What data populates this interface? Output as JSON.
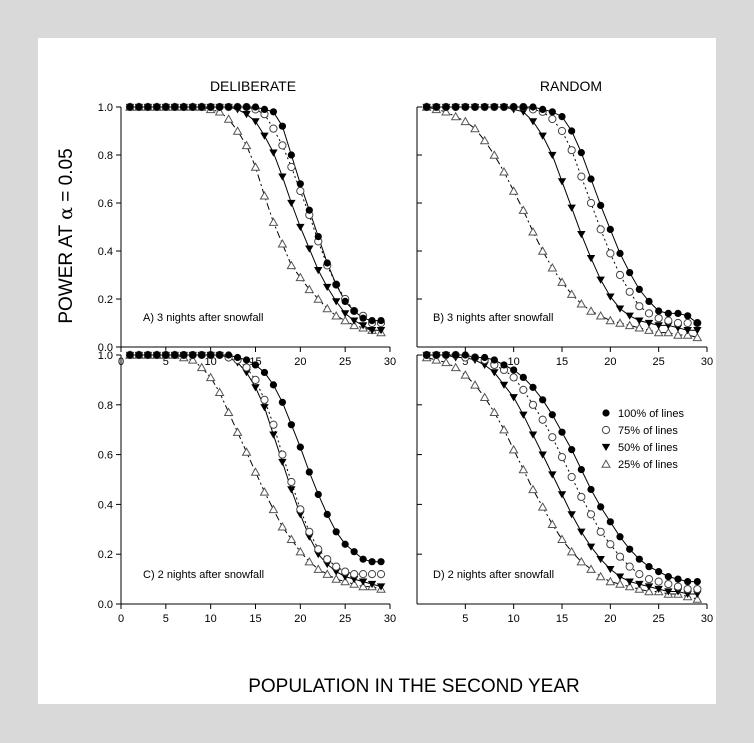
{
  "figure": {
    "col_titles": [
      "DELIBERATE",
      "RANDOM"
    ],
    "ylabel_prefix": "POWER AT ",
    "ylabel_alpha": "α",
    "ylabel_suffix": " = 0.05",
    "xlabel": "POPULATION IN THE SECOND YEAR",
    "legend": [
      {
        "label": "100% of lines",
        "marker": "filled-circle"
      },
      {
        "label": "75% of lines",
        "marker": "open-circle"
      },
      {
        "label": "50% of lines",
        "marker": "filled-triangle-down"
      },
      {
        "label": "25% of lines",
        "marker": "open-triangle-up"
      }
    ],
    "colors": {
      "background": "#d9d9d9",
      "panel": "#ffffff",
      "ink": "#000000",
      "open_marker_stroke": "#444444"
    }
  },
  "chart_data": [
    {
      "type": "line",
      "panel": "A) 3 nights after snowfall",
      "column": "DELIBERATE",
      "xlim": [
        0,
        30
      ],
      "ylim": [
        0,
        1
      ],
      "xticks": [
        0,
        5,
        10,
        15,
        20,
        25,
        30
      ],
      "yticks": [
        0.0,
        0.2,
        0.4,
        0.6,
        0.8,
        1.0
      ],
      "x": [
        1,
        2,
        3,
        4,
        5,
        6,
        7,
        8,
        9,
        10,
        11,
        12,
        13,
        14,
        15,
        16,
        17,
        18,
        19,
        20,
        21,
        22,
        23,
        24,
        25,
        26,
        27,
        28,
        29
      ],
      "series": [
        {
          "name": "100% of lines",
          "values": [
            1.0,
            1.0,
            1.0,
            1.0,
            1.0,
            1.0,
            1.0,
            1.0,
            1.0,
            1.0,
            1.0,
            1.0,
            1.0,
            1.0,
            1.0,
            0.99,
            0.98,
            0.92,
            0.8,
            0.68,
            0.57,
            0.46,
            0.35,
            0.26,
            0.19,
            0.15,
            0.12,
            0.11,
            0.11
          ]
        },
        {
          "name": "75% of lines",
          "values": [
            1.0,
            1.0,
            1.0,
            1.0,
            1.0,
            1.0,
            1.0,
            1.0,
            1.0,
            1.0,
            1.0,
            1.0,
            1.0,
            1.0,
            0.99,
            0.97,
            0.91,
            0.84,
            0.75,
            0.65,
            0.55,
            0.44,
            0.34,
            0.26,
            0.2,
            0.15,
            0.13,
            0.1,
            0.1
          ]
        },
        {
          "name": "50% of lines",
          "values": [
            1.0,
            1.0,
            1.0,
            1.0,
            1.0,
            1.0,
            1.0,
            1.0,
            1.0,
            1.0,
            1.0,
            1.0,
            0.99,
            0.97,
            0.94,
            0.88,
            0.81,
            0.71,
            0.6,
            0.5,
            0.41,
            0.32,
            0.25,
            0.19,
            0.14,
            0.11,
            0.09,
            0.07,
            0.07
          ]
        },
        {
          "name": "25% of lines",
          "values": [
            1.0,
            1.0,
            1.0,
            1.0,
            1.0,
            1.0,
            1.0,
            1.0,
            1.0,
            0.99,
            0.98,
            0.95,
            0.9,
            0.84,
            0.75,
            0.63,
            0.52,
            0.43,
            0.34,
            0.29,
            0.24,
            0.2,
            0.16,
            0.13,
            0.11,
            0.09,
            0.08,
            0.07,
            0.06
          ]
        }
      ]
    },
    {
      "type": "line",
      "panel": "B) 3 nights after snowfall",
      "column": "RANDOM",
      "xlim": [
        0,
        30
      ],
      "ylim": [
        0,
        1
      ],
      "xticks": [
        5,
        10,
        15,
        20,
        25,
        30
      ],
      "yticks": [
        0.0,
        0.2,
        0.4,
        0.6,
        0.8,
        1.0
      ],
      "x": [
        1,
        2,
        3,
        4,
        5,
        6,
        7,
        8,
        9,
        10,
        11,
        12,
        13,
        14,
        15,
        16,
        17,
        18,
        19,
        20,
        21,
        22,
        23,
        24,
        25,
        26,
        27,
        28,
        29
      ],
      "series": [
        {
          "name": "100% of lines",
          "values": [
            1.0,
            1.0,
            1.0,
            1.0,
            1.0,
            1.0,
            1.0,
            1.0,
            1.0,
            1.0,
            1.0,
            1.0,
            0.99,
            0.98,
            0.96,
            0.9,
            0.81,
            0.7,
            0.59,
            0.49,
            0.39,
            0.31,
            0.24,
            0.19,
            0.15,
            0.14,
            0.14,
            0.13,
            0.1
          ]
        },
        {
          "name": "75% of lines",
          "values": [
            1.0,
            1.0,
            1.0,
            1.0,
            1.0,
            1.0,
            1.0,
            1.0,
            1.0,
            1.0,
            1.0,
            0.99,
            0.98,
            0.95,
            0.9,
            0.82,
            0.71,
            0.6,
            0.49,
            0.39,
            0.3,
            0.23,
            0.17,
            0.14,
            0.12,
            0.11,
            0.1,
            0.1,
            0.1
          ]
        },
        {
          "name": "50% of lines",
          "values": [
            1.0,
            1.0,
            1.0,
            1.0,
            1.0,
            1.0,
            1.0,
            1.0,
            1.0,
            0.99,
            0.98,
            0.94,
            0.88,
            0.8,
            0.69,
            0.58,
            0.47,
            0.37,
            0.28,
            0.21,
            0.16,
            0.13,
            0.11,
            0.1,
            0.09,
            0.09,
            0.08,
            0.07,
            0.07
          ]
        },
        {
          "name": "25% of lines",
          "values": [
            1.0,
            0.99,
            0.98,
            0.96,
            0.94,
            0.91,
            0.86,
            0.8,
            0.73,
            0.65,
            0.57,
            0.48,
            0.4,
            0.33,
            0.27,
            0.22,
            0.18,
            0.15,
            0.13,
            0.11,
            0.1,
            0.09,
            0.08,
            0.07,
            0.06,
            0.06,
            0.05,
            0.05,
            0.04
          ]
        }
      ]
    },
    {
      "type": "line",
      "panel": "C) 2 nights after snowfall",
      "column": "DELIBERATE",
      "xlim": [
        0,
        30
      ],
      "ylim": [
        0,
        1
      ],
      "xticks": [
        0,
        5,
        10,
        15,
        20,
        25,
        30
      ],
      "yticks": [
        0.0,
        0.2,
        0.4,
        0.6,
        0.8,
        1.0
      ],
      "x": [
        1,
        2,
        3,
        4,
        5,
        6,
        7,
        8,
        9,
        10,
        11,
        12,
        13,
        14,
        15,
        16,
        17,
        18,
        19,
        20,
        21,
        22,
        23,
        24,
        25,
        26,
        27,
        28,
        29
      ],
      "series": [
        {
          "name": "100% of lines",
          "values": [
            1.0,
            1.0,
            1.0,
            1.0,
            1.0,
            1.0,
            1.0,
            1.0,
            1.0,
            1.0,
            1.0,
            1.0,
            0.99,
            0.98,
            0.96,
            0.93,
            0.88,
            0.81,
            0.72,
            0.63,
            0.53,
            0.44,
            0.36,
            0.29,
            0.24,
            0.21,
            0.18,
            0.17,
            0.17
          ]
        },
        {
          "name": "75% of lines",
          "values": [
            1.0,
            1.0,
            1.0,
            1.0,
            1.0,
            1.0,
            1.0,
            1.0,
            1.0,
            1.0,
            1.0,
            0.99,
            0.98,
            0.95,
            0.9,
            0.82,
            0.72,
            0.6,
            0.49,
            0.38,
            0.29,
            0.22,
            0.18,
            0.15,
            0.13,
            0.12,
            0.12,
            0.12,
            0.12
          ]
        },
        {
          "name": "50% of lines",
          "values": [
            1.0,
            1.0,
            1.0,
            1.0,
            1.0,
            1.0,
            1.0,
            1.0,
            1.0,
            1.0,
            1.0,
            0.99,
            0.97,
            0.93,
            0.87,
            0.79,
            0.68,
            0.57,
            0.46,
            0.36,
            0.27,
            0.2,
            0.16,
            0.13,
            0.11,
            0.1,
            0.09,
            0.08,
            0.07
          ]
        },
        {
          "name": "25% of lines",
          "values": [
            1.0,
            1.0,
            1.0,
            1.0,
            1.0,
            1.0,
            0.99,
            0.98,
            0.95,
            0.91,
            0.85,
            0.77,
            0.69,
            0.61,
            0.53,
            0.45,
            0.38,
            0.31,
            0.26,
            0.21,
            0.17,
            0.14,
            0.12,
            0.1,
            0.09,
            0.08,
            0.07,
            0.07,
            0.06
          ]
        }
      ]
    },
    {
      "type": "line",
      "panel": "D) 2 nights after snowfall",
      "column": "RANDOM",
      "xlim": [
        0,
        30
      ],
      "ylim": [
        0,
        1
      ],
      "xticks": [
        5,
        10,
        15,
        20,
        25,
        30
      ],
      "yticks": [
        0.0,
        0.2,
        0.4,
        0.6,
        0.8,
        1.0
      ],
      "x": [
        1,
        2,
        3,
        4,
        5,
        6,
        7,
        8,
        9,
        10,
        11,
        12,
        13,
        14,
        15,
        16,
        17,
        18,
        19,
        20,
        21,
        22,
        23,
        24,
        25,
        26,
        27,
        28,
        29
      ],
      "series": [
        {
          "name": "100% of lines",
          "values": [
            1.0,
            1.0,
            1.0,
            1.0,
            1.0,
            0.99,
            0.99,
            0.98,
            0.96,
            0.94,
            0.91,
            0.87,
            0.82,
            0.76,
            0.69,
            0.62,
            0.54,
            0.46,
            0.39,
            0.33,
            0.27,
            0.22,
            0.18,
            0.15,
            0.13,
            0.11,
            0.1,
            0.09,
            0.09
          ]
        },
        {
          "name": "75% of lines",
          "values": [
            1.0,
            1.0,
            1.0,
            1.0,
            0.99,
            0.99,
            0.98,
            0.96,
            0.94,
            0.91,
            0.86,
            0.8,
            0.74,
            0.67,
            0.59,
            0.51,
            0.43,
            0.36,
            0.29,
            0.24,
            0.19,
            0.15,
            0.12,
            0.1,
            0.09,
            0.08,
            0.07,
            0.06,
            0.06
          ]
        },
        {
          "name": "50% of lines",
          "values": [
            1.0,
            1.0,
            1.0,
            0.99,
            0.99,
            0.98,
            0.96,
            0.93,
            0.88,
            0.83,
            0.76,
            0.68,
            0.6,
            0.52,
            0.44,
            0.36,
            0.29,
            0.23,
            0.18,
            0.14,
            0.11,
            0.09,
            0.08,
            0.07,
            0.06,
            0.05,
            0.05,
            0.04,
            0.04
          ]
        },
        {
          "name": "25% of lines",
          "values": [
            0.99,
            0.98,
            0.97,
            0.95,
            0.92,
            0.88,
            0.83,
            0.77,
            0.7,
            0.62,
            0.54,
            0.46,
            0.39,
            0.32,
            0.26,
            0.21,
            0.17,
            0.14,
            0.11,
            0.09,
            0.08,
            0.07,
            0.06,
            0.05,
            0.05,
            0.04,
            0.04,
            0.03,
            0.02
          ]
        }
      ]
    }
  ]
}
